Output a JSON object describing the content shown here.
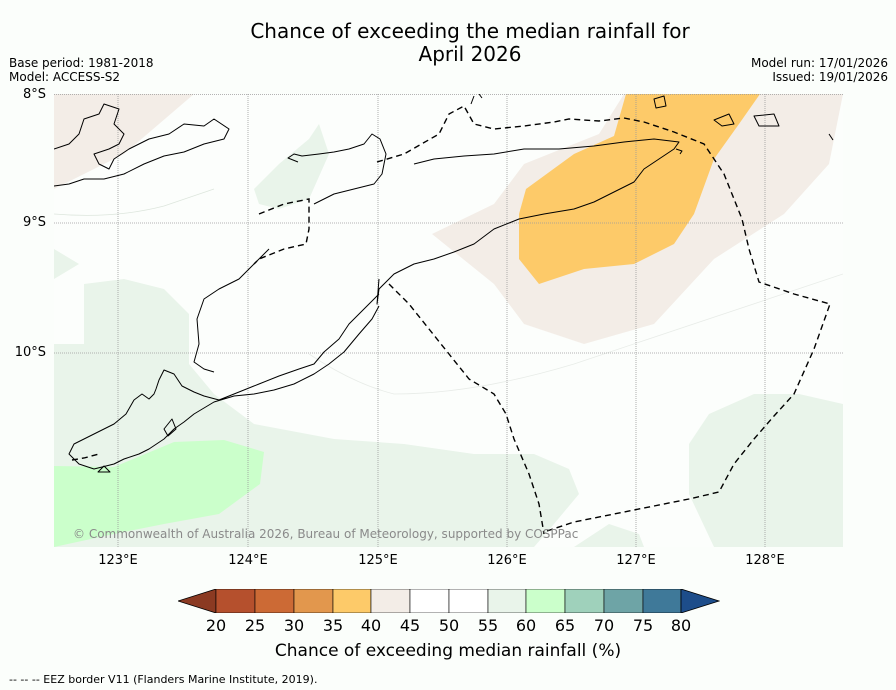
{
  "title": {
    "line1": "Chance of exceeding the median rainfall for",
    "line2": "April 2026"
  },
  "meta_left": {
    "base_period": "Base period: 1981-2018",
    "model": "Model: ACCESS-S2"
  },
  "meta_right": {
    "model_run": "Model run: 17/01/2026",
    "issued": "Issued: 19/01/2026"
  },
  "axes": {
    "lat_labels": [
      "8°S",
      "9°S",
      "10°S"
    ],
    "lon_labels": [
      "123°E",
      "124°E",
      "125°E",
      "126°E",
      "127°E",
      "128°E"
    ]
  },
  "copyright": "© Commonwealth of Australia 2026, Bureau of Meteorology, supported by COSPPac",
  "colorbar": {
    "ticks": [
      "20",
      "25",
      "30",
      "35",
      "40",
      "45",
      "50",
      "55",
      "60",
      "65",
      "70",
      "75",
      "80"
    ],
    "colors": {
      "below_20": "#8b3a22",
      "20_25": "#b5502d",
      "25_30": "#cc6a35",
      "30_35": "#e2974d",
      "35_40": "#fdca69",
      "40_45": "#f3ede7",
      "45_50": "#ffffff",
      "50_55": "#ffffff",
      "55_60": "#e9f4ea",
      "60_65": "#cbffcb",
      "65_70": "#9fd1bb",
      "70_75": "#6ea4a6",
      "75_80": "#3f7999",
      "above_80": "#1d4d8a"
    },
    "label": "Chance of exceeding median rainfall (%)"
  },
  "footnote": "--  --  -- EEZ border V11 (Flanders Marine Institute, 2019).",
  "legend_icons": [
    "dashed-line-icon"
  ]
}
